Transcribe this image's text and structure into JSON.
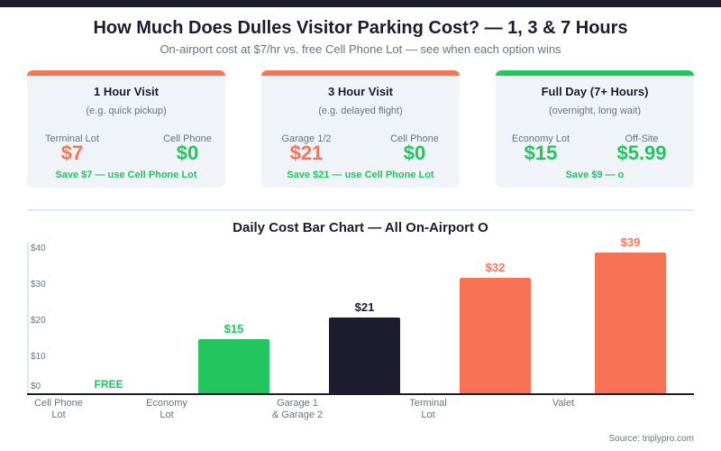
{
  "header": {
    "title": "How Much Does Dulles Visitor Parking Cost? — 1, 3 & 7 Hours",
    "subtitle": "On-airport cost at $7/hr vs. free Cell Phone Lot — see when each option wins"
  },
  "cards": [
    {
      "title": "1 Hour Visit",
      "sub": "(e.g. quick pickup)",
      "a_label": "Terminal Lot",
      "a_value": "$7",
      "b_label": "Cell Phone",
      "b_value": "$0",
      "save": "Save $7 — use Cell Phone Lot",
      "accent": "#f87356"
    },
    {
      "title": "3 Hour Visit",
      "sub": "(e.g. delayed flight)",
      "a_label": "Garage 1/2",
      "a_value": "$21",
      "b_label": "Cell Phone",
      "b_value": "$0",
      "save": "Save $21 — use Cell Phone Lot",
      "accent": "#f87356"
    },
    {
      "title": "Full Day (7+ Hours)",
      "sub": "(overnight, long wait)",
      "a_label": "Economy Lot",
      "a_value": "$15",
      "b_label": "Off-Site",
      "b_value": "$5.99",
      "save": "Save $9 — o",
      "accent": "#22c55e"
    }
  ],
  "colors": {
    "red": "#f87356",
    "green": "#22c55e",
    "dark": "#1c1c2e"
  },
  "chart_data": {
    "type": "bar",
    "title": "Daily Cost Bar Chart — All On-Airport O",
    "yticks": [
      "$40",
      "$30",
      "$20",
      "$10",
      "$0"
    ],
    "categories": [
      "Cell Phone Lot",
      "Economy Lot",
      "Garage 1 & Garage 2",
      "Terminal Lot",
      "Valet"
    ],
    "category_lines": [
      [
        "Cell Phone",
        "Lot"
      ],
      [
        "Economy",
        "Lot"
      ],
      [
        "Garage 1",
        "& Garage 2"
      ],
      [
        "Terminal",
        "Lot"
      ],
      [
        "Valet",
        ""
      ]
    ],
    "values": [
      0,
      15,
      21,
      32,
      39
    ],
    "labels": [
      "FREE",
      "$15",
      "$21",
      "$32",
      "$39"
    ],
    "bar_colors": [
      "#22c55e",
      "#22c55e",
      "#1c1c2e",
      "#f87356",
      "#f87356"
    ]
  },
  "source": "Source: triplypro.com"
}
